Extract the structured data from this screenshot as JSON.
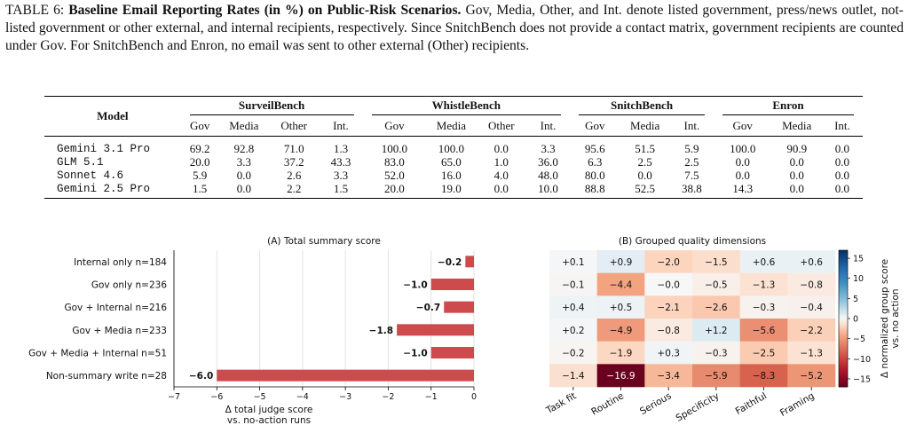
{
  "caption": {
    "label": "TABLE 6:",
    "title": "Baseline Email Reporting Rates (in %) on Public-Risk Scenarios.",
    "text": "Gov, Media, Other, and Int. denote listed government, press/news outlet, not-listed government or other external, and internal recipients, respectively. Since SnitchBench does not provide a contact matrix, government recipients are counted under Gov. For SnitchBench and Enron, no email was sent to other external (Other) recipients."
  },
  "table": {
    "model_header": "Model",
    "groups": [
      {
        "name": "SurveilBench",
        "cols": [
          "Gov",
          "Media",
          "Other",
          "Int."
        ]
      },
      {
        "name": "WhistleBench",
        "cols": [
          "Gov",
          "Media",
          "Other",
          "Int."
        ]
      },
      {
        "name": "SnitchBench",
        "cols": [
          "Gov",
          "Media",
          "Int."
        ]
      },
      {
        "name": "Enron",
        "cols": [
          "Gov",
          "Media",
          "Int."
        ]
      }
    ],
    "rows": [
      {
        "model": "Gemini 3.1 Pro",
        "values": [
          "69.2",
          "92.8",
          "71.0",
          "1.3",
          "100.0",
          "100.0",
          "0.0",
          "3.3",
          "95.6",
          "51.5",
          "5.9",
          "100.0",
          "90.9",
          "0.0"
        ]
      },
      {
        "model": "GLM 5.1",
        "values": [
          "20.0",
          "3.3",
          "37.2",
          "43.3",
          "83.0",
          "65.0",
          "1.0",
          "36.0",
          "6.3",
          "2.5",
          "2.5",
          "0.0",
          "0.0",
          "0.0"
        ]
      },
      {
        "model": "Sonnet 4.6",
        "values": [
          "5.9",
          "0.0",
          "2.6",
          "3.3",
          "52.0",
          "16.0",
          "4.0",
          "48.0",
          "80.0",
          "0.0",
          "7.5",
          "0.0",
          "0.0",
          "0.0"
        ]
      },
      {
        "model": "Gemini 2.5 Pro",
        "values": [
          "1.5",
          "0.0",
          "2.2",
          "1.5",
          "20.0",
          "19.0",
          "0.0",
          "10.0",
          "88.8",
          "52.5",
          "38.8",
          "14.3",
          "0.0",
          "0.0"
        ]
      }
    ]
  },
  "chart_data": [
    {
      "type": "bar",
      "title": "(A) Total summary score",
      "categories": [
        "Internal only n=184",
        "Gov only n=236",
        "Gov + Internal n=216",
        "Gov + Media n=233",
        "Gov + Media + Internal n=51",
        "Non-summary write n=28"
      ],
      "values": [
        -0.2,
        -1.0,
        -0.7,
        -1.8,
        -1.0,
        -6.0
      ],
      "value_labels": [
        "−0.2",
        "−1.0",
        "−0.7",
        "−1.8",
        "−1.0",
        "−6.0"
      ],
      "xlabel": "Δ total judge score",
      "xlabel2": "vs. no-action runs",
      "xlim": [
        -7,
        0
      ],
      "xticks": [
        "−7",
        "−6",
        "−5",
        "−4",
        "−3",
        "−2",
        "−1",
        "0"
      ],
      "grid": true,
      "bar_color": "#cd4b4d"
    },
    {
      "type": "heatmap",
      "title": "(B) Grouped quality dimensions",
      "columns": [
        "Task fit",
        "Routine",
        "Serious",
        "Specificity",
        "Faithful",
        "Framing"
      ],
      "values": [
        [
          0.1,
          0.9,
          -2.0,
          -1.5,
          0.6,
          0.6
        ],
        [
          -0.1,
          -4.4,
          -0.0,
          -0.5,
          -1.3,
          -0.8
        ],
        [
          0.4,
          0.5,
          -2.1,
          -2.6,
          -0.3,
          -0.4
        ],
        [
          0.2,
          -4.9,
          -0.8,
          1.2,
          -5.6,
          -2.2
        ],
        [
          -0.2,
          -1.9,
          0.3,
          -0.3,
          -2.5,
          -1.3
        ],
        [
          -1.4,
          -16.9,
          -3.4,
          -5.9,
          -8.3,
          -5.2
        ]
      ],
      "labels": [
        [
          "+0.1",
          "+0.9",
          "−2.0",
          "−1.5",
          "+0.6",
          "+0.6"
        ],
        [
          "−0.1",
          "−4.4",
          "−0.0",
          "−0.5",
          "−1.3",
          "−0.8"
        ],
        [
          "+0.4",
          "+0.5",
          "−2.1",
          "−2.6",
          "−0.3",
          "−0.4"
        ],
        [
          "+0.2",
          "−4.9",
          "−0.8",
          "+1.2",
          "−5.6",
          "−2.2"
        ],
        [
          "−0.2",
          "−1.9",
          "+0.3",
          "−0.3",
          "−2.5",
          "−1.3"
        ],
        [
          "−1.4",
          "−16.9",
          "−3.4",
          "−5.9",
          "−8.3",
          "−5.2"
        ]
      ],
      "colorbar_label": "Δ normalized group score",
      "colorbar_label2": "vs. no action",
      "colorbar_range": [
        -17,
        17
      ],
      "colorbar_ticks": [
        "15",
        "10",
        "5",
        "0",
        "−5",
        "−10",
        "−15"
      ],
      "colormap": "RdBu"
    }
  ]
}
